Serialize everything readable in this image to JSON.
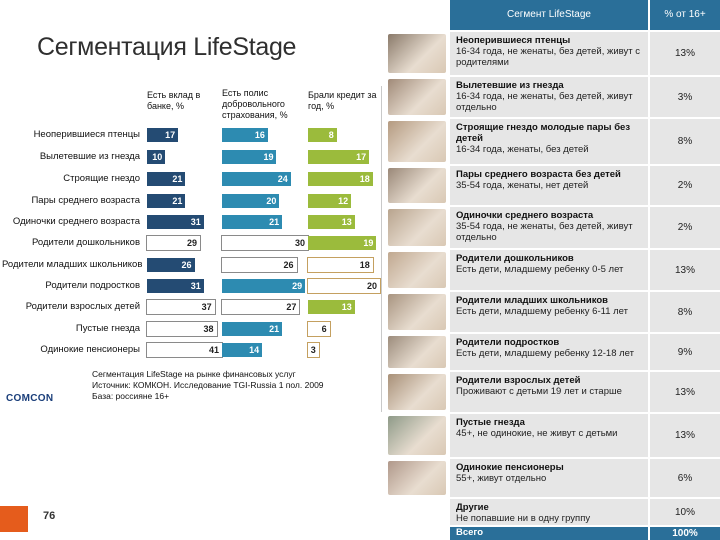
{
  "title": "Сегментация LifeStage",
  "chart_data": {
    "type": "bar",
    "series": [
      {
        "name": "Есть вклад в банке, %",
        "values": [
          17,
          10,
          21,
          21,
          31,
          29,
          26,
          31,
          37,
          38,
          41
        ]
      },
      {
        "name": "Есть полис добровольного страхования, %",
        "values": [
          16,
          19,
          24,
          20,
          21,
          30,
          26,
          29,
          27,
          21,
          14
        ]
      },
      {
        "name": "Брали кредит за год, %",
        "values": [
          8,
          17,
          18,
          12,
          13,
          19,
          18,
          20,
          13,
          6,
          3
        ]
      }
    ],
    "categories": [
      "Неоперившиеся птенцы",
      "Вылетевшие из гнезда",
      "Строящие гнездо",
      "Пары среднего возраста",
      "Одиночки среднего возраста",
      "Родители дошкольников",
      "Родители младших школьников",
      "Родители подростков",
      "Родители взрослых детей",
      "Пустые гнезда",
      "Одинокие пенсионеры"
    ],
    "footnote": [
      "Сегментация LifeStage на рынке финансовых услуг",
      "Источник: КОМКОН. Исследование TGI-Russia 1 пол. 2009",
      "База: россияне 16+"
    ]
  },
  "logo": "COMCON",
  "page_number": "76",
  "table": {
    "col_segment": "Сегмент LifeStage",
    "col_pct": "% от 16+",
    "rows": [
      {
        "name": "Неоперившиеся птенцы",
        "desc": "16-34 года, не женаты, без детей, живут с родителями",
        "pct": "13%"
      },
      {
        "name": "Вылетевшие из гнезда",
        "desc": "16-34 года, не женаты, без детей, живут отдельно",
        "pct": "3%"
      },
      {
        "name": "Строящие гнездо молодые пары без детей",
        "desc": "16-34 года, женаты, без детей",
        "pct": "8%"
      },
      {
        "name": "Пары среднего возраста без детей",
        "desc": "35-54 года, женаты, нет детей",
        "pct": "2%"
      },
      {
        "name": "Одиночки среднего возраста",
        "desc": "35-54 года, не женаты, без детей, живут отдельно",
        "pct": "2%"
      },
      {
        "name": "Родители дошкольников",
        "desc": "Есть дети, младшему ребенку 0-5 лет",
        "pct": "13%"
      },
      {
        "name": "Родители младших школьников",
        "desc": "Есть дети, младшему ребенку 6-11 лет",
        "pct": "8%"
      },
      {
        "name": "Родители подростков",
        "desc": "Есть дети, младшему ребенку 12-18 лет",
        "pct": "9%"
      },
      {
        "name": "Родители взрослых детей",
        "desc": "Проживают с детьми 19 лет и старше",
        "pct": "13%"
      },
      {
        "name": "Пустые гнезда",
        "desc": "45+, не одинокие, не живут с детьми",
        "pct": "13%"
      },
      {
        "name": "Одинокие пенсионеры",
        "desc": "55+, живут отдельно",
        "pct": "6%"
      },
      {
        "name": "Другие",
        "desc": "Не попавшие ни в одну группу",
        "pct": "10%"
      }
    ],
    "total_label": "Всего",
    "total_pct": "100%"
  },
  "colors": {
    "header": "#2a6f99",
    "bar_deposit": "#244b73",
    "bar_insurance": "#2d8bb1",
    "bar_credit": "#9bbb3c",
    "accent_orange": "#e55c1c"
  }
}
